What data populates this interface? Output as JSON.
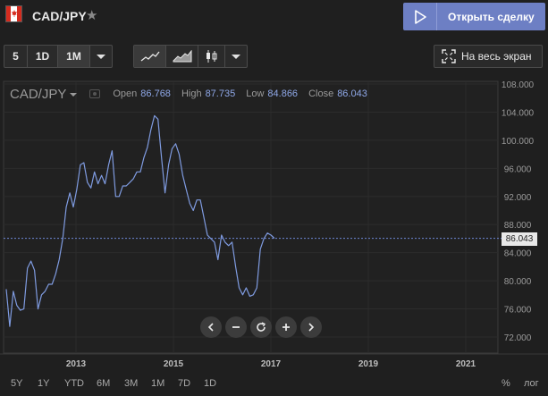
{
  "header": {
    "symbol": "CAD/JPY",
    "star_icon": "star-icon",
    "trade_button": "Открыть сделку",
    "flag": "canada-flag"
  },
  "toolbar": {
    "intervals": [
      "5",
      "1D",
      "1M"
    ],
    "active_interval": "1M",
    "chart_types": [
      "line-chart-icon",
      "area-chart-icon",
      "candlestick-icon"
    ],
    "fullscreen_label": "На весь экран"
  },
  "legend": {
    "pair": "CAD/JPY",
    "open_label": "Open",
    "open": "86.768",
    "high_label": "High",
    "high": "87.735",
    "low_label": "Low",
    "low": "84.866",
    "close_label": "Close",
    "close": "86.043"
  },
  "current_price_label": "86.043",
  "ranges": [
    "5Y",
    "1Y",
    "YTD",
    "6M",
    "3M",
    "1M",
    "7D",
    "1D"
  ],
  "bottom_right": [
    "%",
    "лог"
  ],
  "colors": {
    "line": "#7f9be0",
    "background": "#1f1f1f",
    "accent": "#6d7fc4"
  },
  "chart_data": {
    "type": "line",
    "title": "",
    "series": [
      {
        "values": [
          [
            2012.0,
            78.8
          ],
          [
            2012.05,
            73.5
          ],
          [
            2012.1,
            78.5
          ],
          [
            2012.15,
            76.5
          ],
          [
            2012.2,
            75.8
          ],
          [
            2012.25,
            76.0
          ],
          [
            2012.3,
            81.8
          ],
          [
            2012.35,
            82.8
          ],
          [
            2012.4,
            81.5
          ],
          [
            2012.45,
            76.0
          ],
          [
            2012.5,
            78.0
          ],
          [
            2012.55,
            78.5
          ],
          [
            2012.6,
            79.5
          ],
          [
            2012.65,
            79.5
          ],
          [
            2012.7,
            81.0
          ],
          [
            2012.75,
            83.0
          ],
          [
            2012.8,
            86.0
          ],
          [
            2012.85,
            90.5
          ],
          [
            2012.9,
            92.5
          ],
          [
            2012.95,
            90.5
          ],
          [
            2013.0,
            93.0
          ],
          [
            2013.05,
            96.5
          ],
          [
            2013.1,
            96.8
          ],
          [
            2013.15,
            94.0
          ],
          [
            2013.2,
            93.2
          ],
          [
            2013.25,
            95.5
          ],
          [
            2013.3,
            93.8
          ],
          [
            2013.35,
            95.0
          ],
          [
            2013.4,
            93.8
          ],
          [
            2013.45,
            96.5
          ],
          [
            2013.5,
            98.5
          ],
          [
            2013.55,
            92.0
          ],
          [
            2013.6,
            92.0
          ],
          [
            2013.65,
            93.5
          ],
          [
            2013.7,
            93.5
          ],
          [
            2013.75,
            94.0
          ],
          [
            2013.8,
            94.5
          ],
          [
            2013.85,
            95.5
          ],
          [
            2013.9,
            95.5
          ],
          [
            2013.95,
            97.5
          ],
          [
            2014.0,
            99.0
          ],
          [
            2014.05,
            101.5
          ],
          [
            2014.1,
            103.5
          ],
          [
            2014.15,
            103.0
          ],
          [
            2014.2,
            97.5
          ],
          [
            2014.25,
            92.5
          ],
          [
            2014.3,
            96.5
          ],
          [
            2014.35,
            98.8
          ],
          [
            2014.4,
            99.5
          ],
          [
            2014.45,
            98.0
          ],
          [
            2014.5,
            95.0
          ],
          [
            2014.55,
            93.0
          ],
          [
            2014.6,
            91.0
          ],
          [
            2014.65,
            90.0
          ],
          [
            2014.7,
            91.5
          ],
          [
            2014.75,
            91.5
          ],
          [
            2014.8,
            89.0
          ],
          [
            2014.85,
            86.5
          ],
          [
            2014.9,
            86.0
          ],
          [
            2014.95,
            85.5
          ],
          [
            2015.0,
            83.0
          ],
          [
            2015.05,
            86.5
          ],
          [
            2015.1,
            85.5
          ],
          [
            2015.15,
            85.0
          ],
          [
            2015.2,
            85.5
          ],
          [
            2015.25,
            82.0
          ],
          [
            2015.3,
            79.0
          ],
          [
            2015.35,
            78.0
          ],
          [
            2015.4,
            79.0
          ],
          [
            2015.45,
            77.8
          ],
          [
            2015.5,
            78.0
          ],
          [
            2015.55,
            79.0
          ],
          [
            2015.6,
            84.5
          ],
          [
            2015.65,
            86.0
          ],
          [
            2015.7,
            86.8
          ],
          [
            2015.75,
            86.5
          ],
          [
            2015.8,
            86.043
          ]
        ]
      }
    ],
    "x_axis_labels": [
      "2013",
      "2015",
      "2017",
      "2019",
      "2021"
    ],
    "y_axis_labels": [
      "108.000",
      "104.000",
      "100.000",
      "96.000",
      "92.000",
      "88.000",
      "84.000",
      "80.000",
      "76.000",
      "72.000"
    ],
    "ylim": [
      70,
      109
    ],
    "current_value": 86.043,
    "grid": true
  }
}
